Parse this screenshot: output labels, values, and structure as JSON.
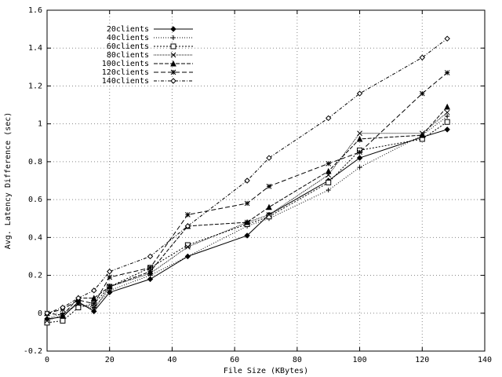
{
  "chart_data": {
    "type": "line",
    "xlabel": "File Size (KBytes)",
    "ylabel": "Avg. Latency Difference (sec)",
    "x": [
      0,
      5,
      10,
      15,
      20,
      33,
      45,
      64,
      71,
      90,
      100,
      120,
      128
    ],
    "xlim": [
      0,
      140
    ],
    "xticks": [
      0,
      20,
      40,
      60,
      80,
      100,
      120,
      140
    ],
    "ylim": [
      -0.2,
      1.6
    ],
    "yticks": [
      -0.2,
      0,
      0.2,
      0.4,
      0.6,
      0.8,
      1,
      1.2,
      1.4,
      1.6
    ],
    "grid": true,
    "legend": "upper-left",
    "series": [
      {
        "name": "20clients",
        "color": "#000000",
        "dash": "none",
        "marker": "diamond-filled",
        "values": [
          -0.03,
          -0.02,
          0.06,
          0.01,
          0.11,
          0.18,
          0.3,
          0.41,
          0.52,
          0.7,
          0.82,
          0.93,
          0.97
        ]
      },
      {
        "name": "40clients",
        "color": "#000000",
        "dash": "1,2",
        "marker": "plus",
        "values": [
          -0.03,
          0.0,
          0.05,
          0.03,
          0.12,
          0.2,
          0.3,
          0.46,
          0.5,
          0.65,
          0.77,
          0.94,
          1.04
        ]
      },
      {
        "name": "60clients",
        "color": "#000000",
        "dash": "2,2",
        "marker": "square",
        "values": [
          -0.05,
          -0.04,
          0.03,
          0.05,
          0.14,
          0.24,
          0.36,
          0.47,
          0.51,
          0.69,
          0.86,
          0.92,
          1.01
        ]
      },
      {
        "name": "80clients",
        "color": "#000000",
        "dash": "1,1",
        "marker": "cross",
        "values": [
          -0.04,
          -0.01,
          0.05,
          0.02,
          0.14,
          0.21,
          0.35,
          0.48,
          0.52,
          0.73,
          0.95,
          0.95,
          1.06
        ]
      },
      {
        "name": "100clients",
        "color": "#000000",
        "dash": "5,2",
        "marker": "triangle",
        "values": [
          0.0,
          -0.01,
          0.08,
          0.08,
          0.14,
          0.22,
          0.46,
          0.48,
          0.56,
          0.75,
          0.92,
          0.94,
          1.09
        ]
      },
      {
        "name": "120clients",
        "color": "#000000",
        "dash": "6,3",
        "marker": "asterisk",
        "values": [
          0.0,
          0.02,
          0.07,
          0.05,
          0.19,
          0.24,
          0.52,
          0.58,
          0.67,
          0.79,
          0.85,
          1.16,
          1.27
        ]
      },
      {
        "name": "140clients",
        "color": "#000000",
        "dash": "4,2,1,2",
        "marker": "diamond",
        "values": [
          0.0,
          0.03,
          0.08,
          0.12,
          0.22,
          0.3,
          0.46,
          0.7,
          0.82,
          1.03,
          1.16,
          1.35,
          1.45
        ]
      }
    ]
  }
}
